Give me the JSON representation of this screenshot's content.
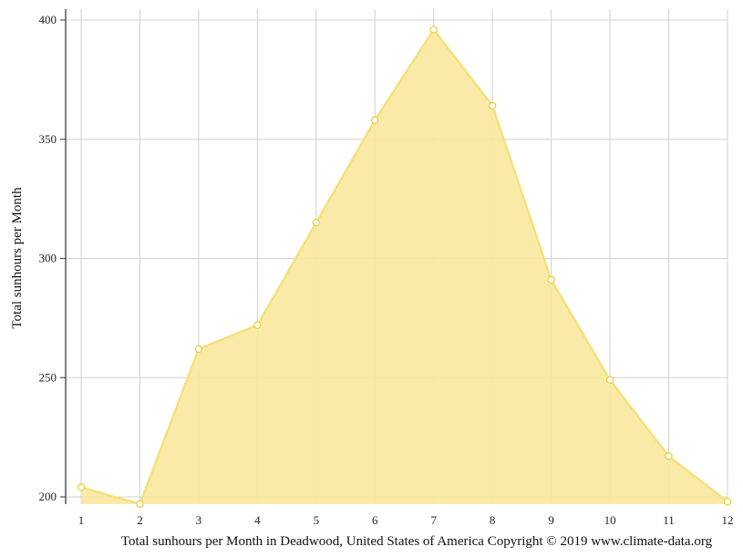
{
  "chart_data": {
    "type": "area",
    "title": "",
    "xlabel": "",
    "ylabel": "Total sunhours per Month",
    "caption": "Total sunhours per Month in Deadwood, United States of America Copyright © 2019 www.climate-data.org",
    "x": [
      1,
      2,
      3,
      4,
      5,
      6,
      7,
      8,
      9,
      10,
      11,
      12
    ],
    "x_ticks": [
      "1",
      "2",
      "3",
      "4",
      "5",
      "6",
      "7",
      "8",
      "9",
      "10",
      "11",
      "12"
    ],
    "y_ticks": [
      "200",
      "250",
      "300",
      "350",
      "400"
    ],
    "ylim": [
      197,
      404
    ],
    "grid": true,
    "series": [
      {
        "values": [
          204,
          197,
          262,
          272,
          315,
          358,
          396,
          364,
          291,
          249,
          217,
          198
        ],
        "color": "#f4da5a"
      }
    ]
  },
  "colors": {
    "area_fill": "#f8e89e",
    "line": "#f6e07a",
    "marker_fill": "#ffffff",
    "marker_stroke": "#ecd040",
    "grid": "#d0d0d0",
    "axis": "#555555"
  }
}
